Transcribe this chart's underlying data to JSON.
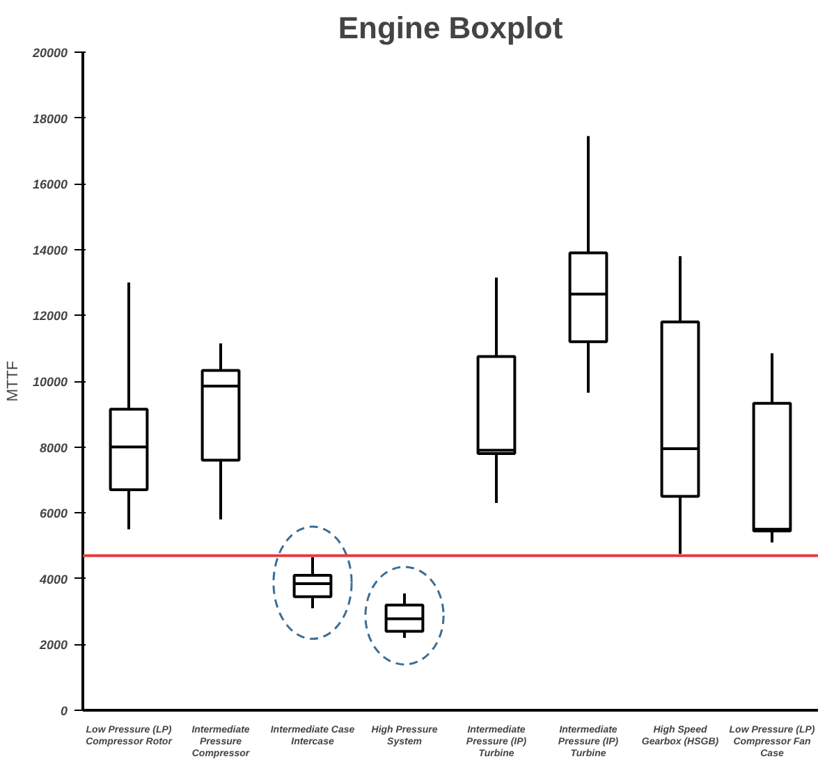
{
  "chart_data": {
    "type": "box",
    "title": "Engine Boxplot",
    "ylabel": "MTTF",
    "categories": [
      "Low Pressure (LP) Compressor Rotor",
      "Intermediate Pressure Compressor",
      "Intermediate Case Intercase",
      "High Pressure System",
      "Intermediate Pressure (IP) Turbine",
      "Intermediate Pressure (IP) Turbine",
      "High Speed Gearbox (HSGB)",
      "Low Pressure (LP) Compressor Fan Case"
    ],
    "boxes": [
      {
        "low": 5500,
        "q1": 6700,
        "median": 8000,
        "q3": 9150,
        "high": 13000
      },
      {
        "low": 5800,
        "q1": 7600,
        "median": 9850,
        "q3": 10330,
        "high": 11150
      },
      {
        "low": 3100,
        "q1": 3450,
        "median": 3850,
        "q3": 4100,
        "high": 4650
      },
      {
        "low": 2200,
        "q1": 2400,
        "median": 2780,
        "q3": 3200,
        "high": 3550
      },
      {
        "low": 6300,
        "q1": 7800,
        "median": 7900,
        "q3": 10750,
        "high": 13150
      },
      {
        "low": 9650,
        "q1": 11200,
        "median": 12650,
        "q3": 13900,
        "high": 17450
      },
      {
        "low": 4750,
        "q1": 6500,
        "median": 7950,
        "q3": 11800,
        "high": 13800
      },
      {
        "low": 5100,
        "q1": 5450,
        "median": 5500,
        "q3": 9330,
        "high": 10850
      }
    ],
    "ylim": [
      0,
      20000
    ],
    "yticks": [
      0,
      2000,
      4000,
      6000,
      8000,
      10000,
      12000,
      14000,
      16000,
      18000,
      20000
    ],
    "ref_lines": [
      {
        "axis": "y",
        "value": 4700,
        "color": "#e8393c"
      }
    ],
    "grid": false
  }
}
